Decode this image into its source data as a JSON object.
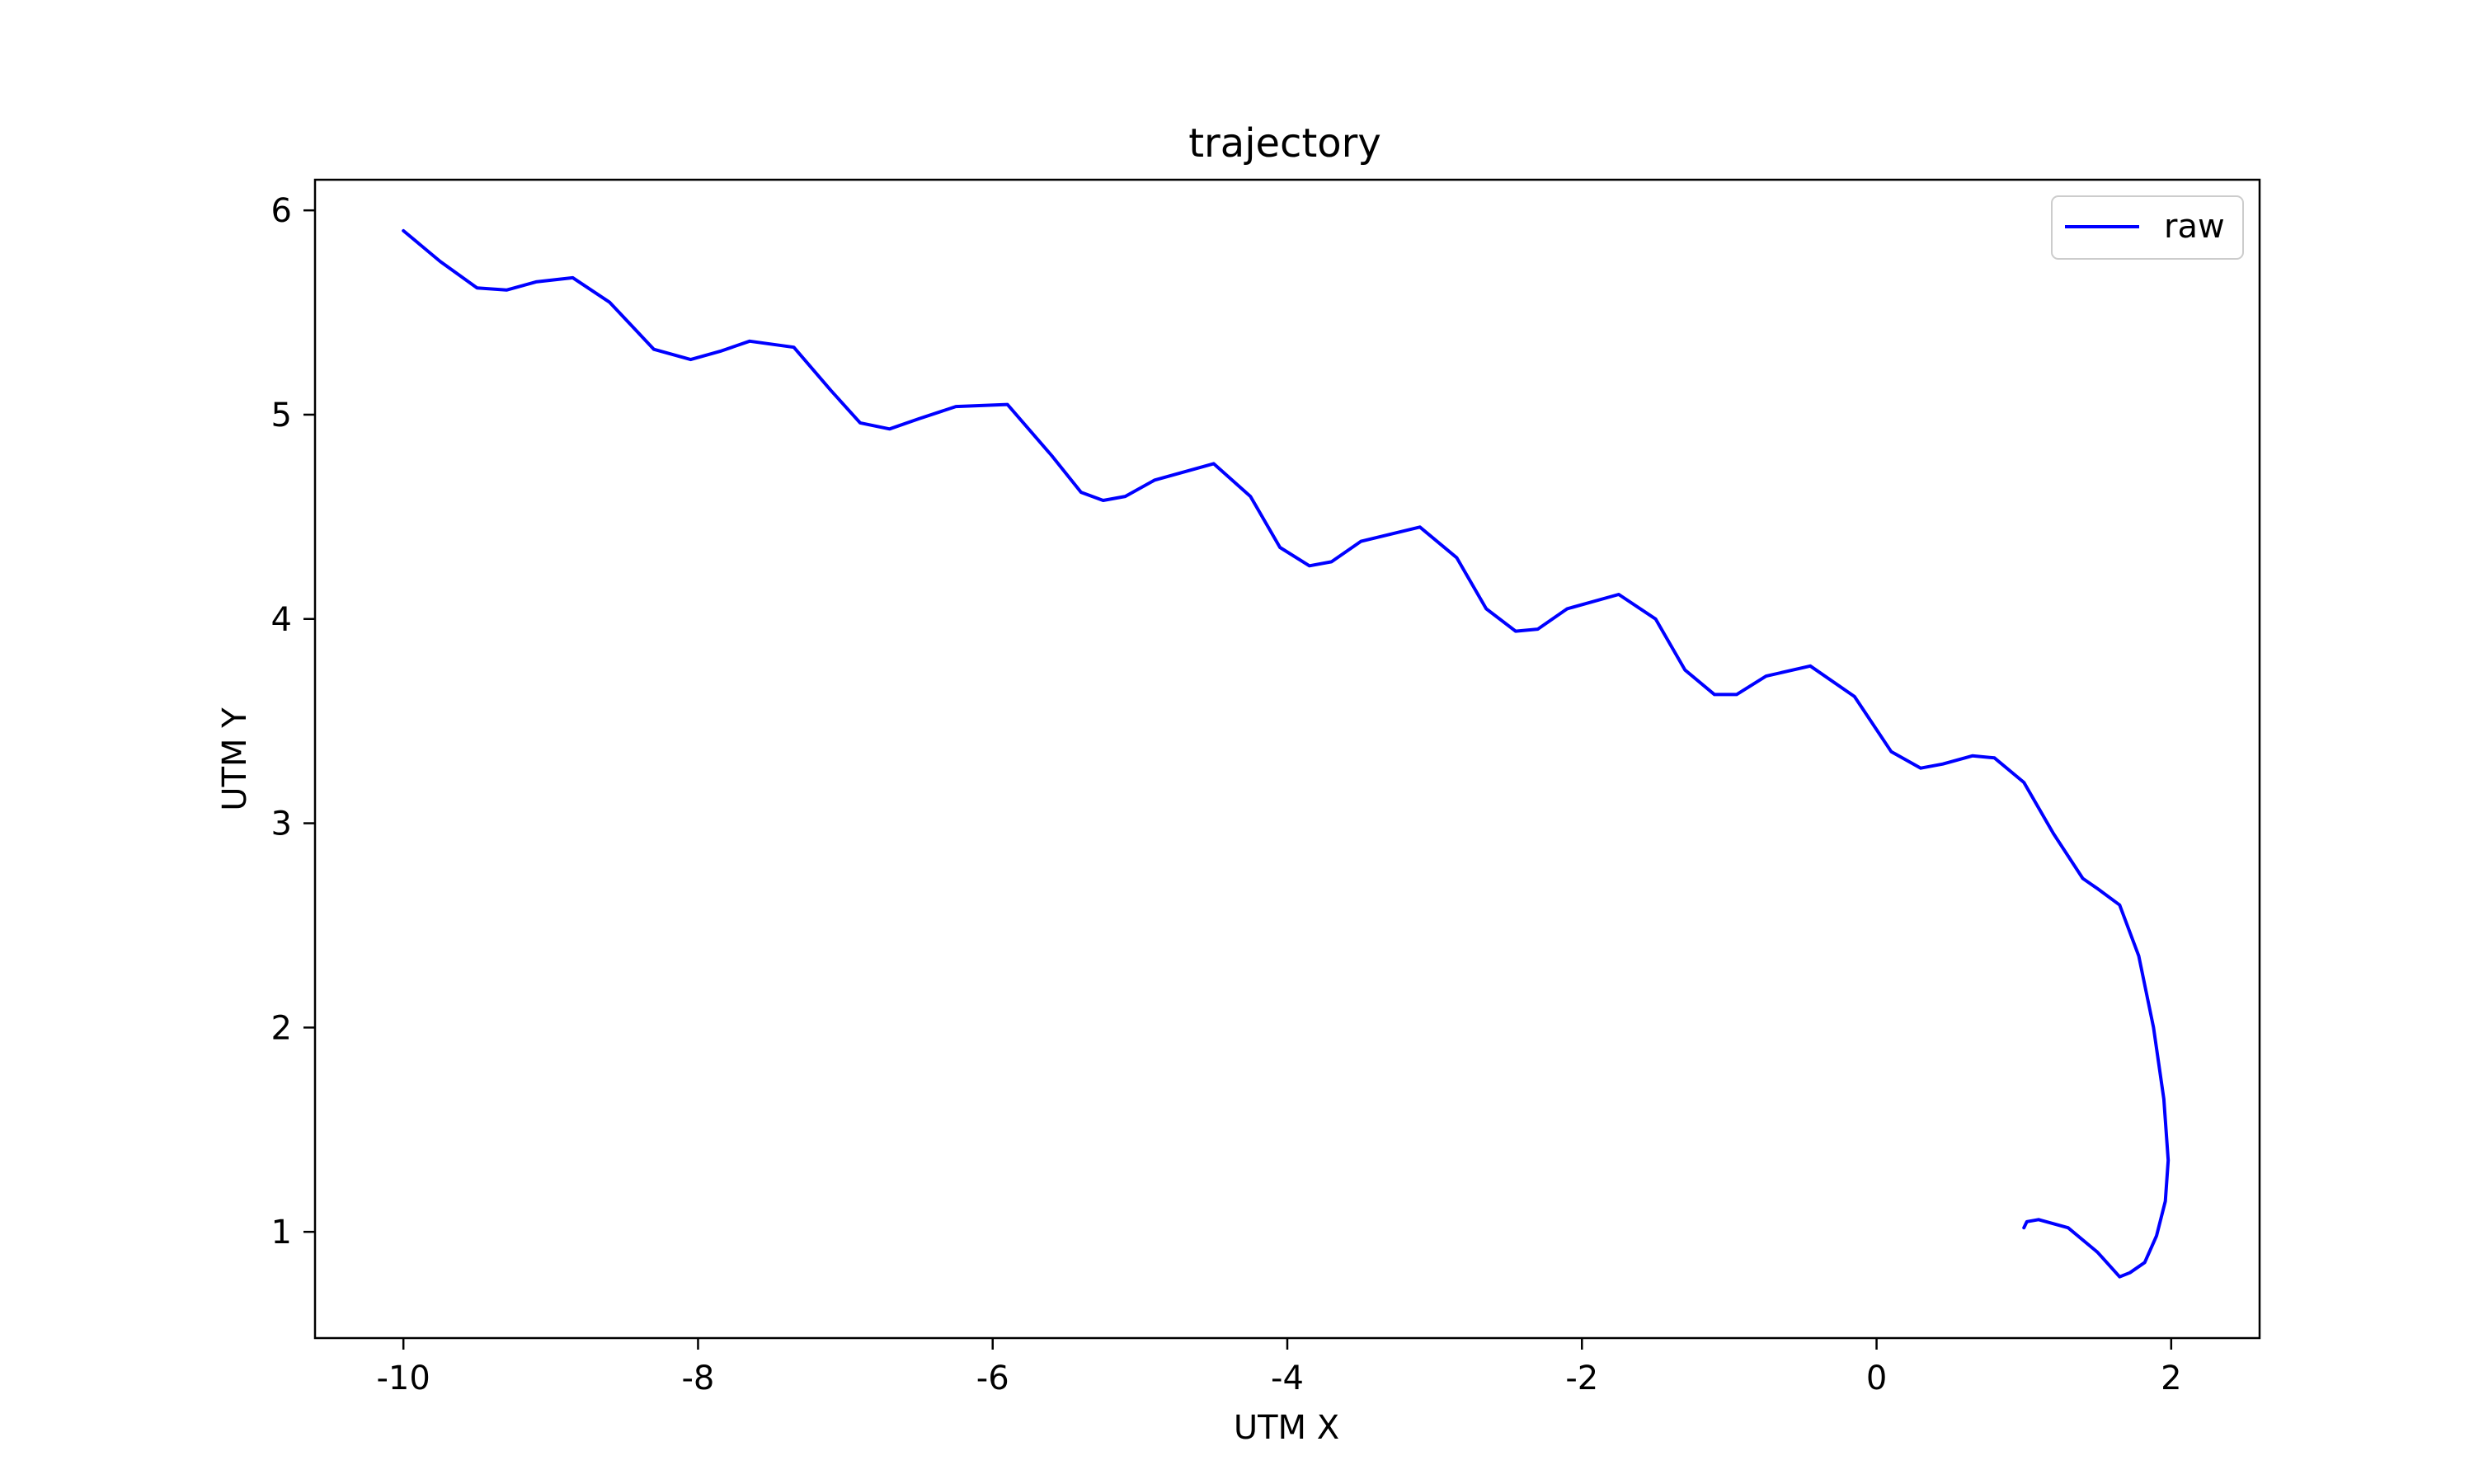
{
  "chart_data": {
    "type": "line",
    "title": "trajectory",
    "xlabel": "UTM X",
    "ylabel": "UTM Y",
    "xlim": [
      -10.6,
      2.6
    ],
    "ylim": [
      0.48,
      6.15
    ],
    "x_ticks": [
      -10,
      -8,
      -6,
      -4,
      -2,
      0,
      2
    ],
    "x_tick_labels": [
      "-10",
      "-8",
      "-6",
      "-4",
      "-2",
      "0",
      "2"
    ],
    "y_ticks": [
      1,
      2,
      3,
      4,
      5,
      6
    ],
    "y_tick_labels": [
      "1",
      "2",
      "3",
      "4",
      "5",
      "6"
    ],
    "grid": false,
    "legend_position": "top-right",
    "series": [
      {
        "name": "raw",
        "color": "#0000ff",
        "x": [
          -10.0,
          -9.75,
          -9.5,
          -9.3,
          -9.1,
          -8.85,
          -8.6,
          -8.3,
          -8.05,
          -7.85,
          -7.65,
          -7.35,
          -7.1,
          -6.9,
          -6.7,
          -6.5,
          -6.25,
          -5.9,
          -5.6,
          -5.4,
          -5.25,
          -5.1,
          -4.9,
          -4.5,
          -4.25,
          -4.05,
          -3.85,
          -3.7,
          -3.5,
          -3.1,
          -2.85,
          -2.65,
          -2.45,
          -2.3,
          -2.1,
          -1.75,
          -1.5,
          -1.3,
          -1.1,
          -0.95,
          -0.75,
          -0.45,
          -0.15,
          0.1,
          0.3,
          0.45,
          0.65,
          0.8,
          1.0,
          1.2,
          1.4,
          1.5,
          1.65,
          1.78,
          1.88,
          1.95,
          1.98,
          1.96,
          1.9,
          1.82,
          1.72,
          1.65,
          1.5,
          1.3,
          1.1,
          1.02,
          1.0
        ],
        "y": [
          5.9,
          5.75,
          5.62,
          5.61,
          5.65,
          5.67,
          5.55,
          5.32,
          5.27,
          5.31,
          5.36,
          5.33,
          5.12,
          4.96,
          4.93,
          4.98,
          5.04,
          5.05,
          4.8,
          4.62,
          4.58,
          4.6,
          4.68,
          4.76,
          4.6,
          4.35,
          4.26,
          4.28,
          4.38,
          4.45,
          4.3,
          4.05,
          3.94,
          3.95,
          4.05,
          4.12,
          4.0,
          3.75,
          3.63,
          3.63,
          3.72,
          3.77,
          3.62,
          3.35,
          3.27,
          3.29,
          3.33,
          3.32,
          3.2,
          2.95,
          2.73,
          2.68,
          2.6,
          2.35,
          2.0,
          1.65,
          1.35,
          1.15,
          0.98,
          0.85,
          0.8,
          0.78,
          0.9,
          1.02,
          1.06,
          1.05,
          1.02
        ]
      }
    ]
  }
}
